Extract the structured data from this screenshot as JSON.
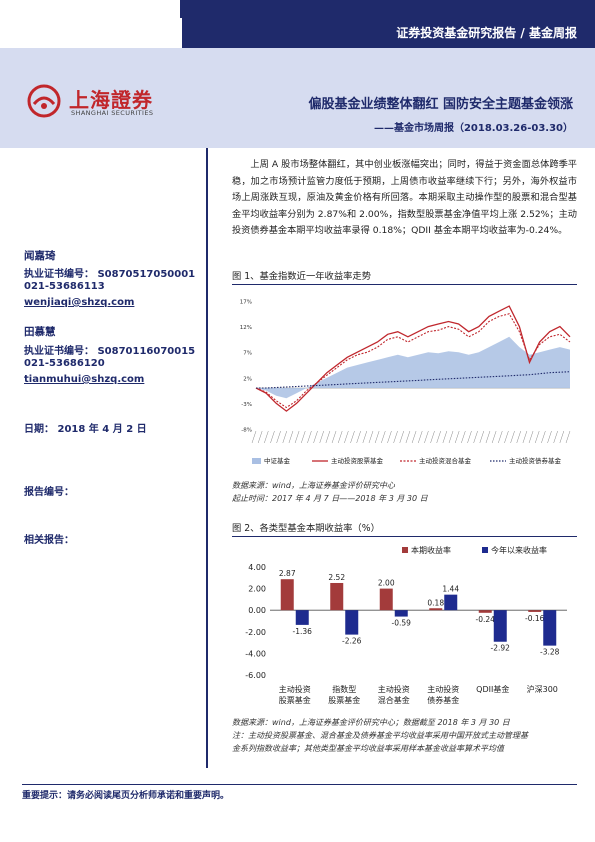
{
  "header": {
    "ribbon": "证券投资基金研究报告 / 基金周报",
    "logo_cn": "上海證券",
    "logo_en": "SHANGHAI SECURITIES",
    "title": "偏股基金业绩整体翻红 国防安全主题基金领涨",
    "subtitle": "——基金市场周报（2018.03.26-03.30）"
  },
  "sidebar": {
    "analyst1_name": "闻嘉琦",
    "analyst1_cert": "执业证书编号： S0870517050001",
    "analyst1_phone": "021-53686113",
    "analyst1_email": "wenjiaqi@shzq.com",
    "analyst2_name": "田慕慧",
    "analyst2_cert": "执业证书编号： S0870116070015",
    "analyst2_phone": "021-53686120",
    "analyst2_email": "tianmuhui@shzq.com",
    "date": "日期：  2018 年 4 月 2 日",
    "report_no": "报告编号：",
    "related": "相关报告："
  },
  "summary": {
    "p1": "上周 A 股市场整体翻红，其中创业板涨幅突出；同时，得益于资金面总体跨季平稳，加之市场预计监管力度低于预期，上周债市收益率继续下行；另外，海外权益市场上周涨跌互现，原油及黄金价格有所回落。本期采取主动操作型的股票和混合型基金平均收益率分别为 2.87%和 2.00%，指数型股票基金净值平均上涨 2.52%；主动投资债券基金本期平均收益率录得 0.18%；QDII 基金本期平均收益率为-0.24%。"
  },
  "figure1": {
    "title": "图 1、基金指数近一年收益率走势",
    "source": "数据来源：wind，上海证券基金评价研究中心",
    "period": "起止时间：2017 年 4 月 7 日——2018 年 3 月 30 日",
    "chart_data": {
      "type": "line",
      "ylim": [
        -8,
        17
      ],
      "yticks": [
        "17%",
        "12%",
        "7%",
        "2%",
        "-3%",
        "-8%"
      ],
      "ytick_values": [
        17,
        12,
        7,
        2,
        -3,
        -8
      ],
      "series": [
        {
          "name": "中证基金",
          "style": "area",
          "color": "#a9bfe3",
          "values": [
            0,
            -0.5,
            -1.5,
            -2,
            -1,
            0,
            1,
            2,
            3,
            4,
            4.5,
            5,
            5.5,
            6,
            6.5,
            6,
            6.5,
            7,
            6.8,
            7.2,
            7,
            6.5,
            7,
            8,
            9,
            10,
            8,
            6.5,
            7,
            7.5,
            8,
            7.5
          ]
        },
        {
          "name": "主动投资股票基金",
          "style": "solid",
          "color": "#c0272d",
          "values": [
            0,
            -1,
            -3,
            -4.5,
            -3,
            -1,
            1,
            3,
            4.5,
            6,
            7,
            8,
            9,
            10.5,
            11,
            10,
            11,
            12,
            12.5,
            13,
            12.5,
            11,
            12,
            14,
            15,
            16,
            12,
            5,
            9,
            11,
            12,
            10
          ]
        },
        {
          "name": "主动投资混合基金",
          "style": "dashed",
          "color": "#c0272d",
          "values": [
            0,
            -0.8,
            -2.5,
            -3.8,
            -2.5,
            -0.5,
            1,
            2.5,
            4,
            5.5,
            6.5,
            7,
            8,
            9.5,
            10,
            9,
            10,
            11,
            11.3,
            12,
            11.5,
            10,
            11,
            13,
            14,
            14.5,
            11,
            5.5,
            8.5,
            10,
            10.5,
            9
          ]
        },
        {
          "name": "主动投资债券基金",
          "style": "dotted",
          "color": "#1f2a6b",
          "values": [
            0,
            0,
            0.1,
            0.2,
            0.3,
            0.4,
            0.5,
            0.6,
            0.7,
            0.8,
            0.9,
            1,
            1.1,
            1.2,
            1.3,
            1.4,
            1.5,
            1.6,
            1.7,
            1.8,
            1.9,
            2,
            2.1,
            2.2,
            2.3,
            2.4,
            2.5,
            2.6,
            2.8,
            3,
            3.1,
            3.2
          ]
        }
      ]
    }
  },
  "figure2": {
    "title": "图 2、各类型基金本期收益率（%）",
    "source": "数据来源：wind，上海证券基金评价研究中心；数据截至 2018 年 3 月 30 日",
    "note1": "注：主动投资股票基金、混合基金及债券基金平均收益率采用中国开放式主动管理基",
    "note2": "金系列指数收益率；其他类型基金平均收益率采用样本基金收益率算术平均值",
    "chart_data": {
      "type": "bar",
      "categories": [
        [
          "主动投资",
          "股票基金"
        ],
        [
          "指数型",
          "股票基金"
        ],
        [
          "主动投资",
          "混合基金"
        ],
        [
          "主动投资",
          "债券基金"
        ],
        [
          "QDII基金"
        ],
        [
          "沪深300"
        ]
      ],
      "ylim": [
        -6,
        4
      ],
      "yticks": [
        "4.00",
        "2.00",
        "0.00",
        "-2.00",
        "-4.00",
        "-6.00"
      ],
      "ytick_values": [
        4,
        2,
        0,
        -2,
        -4,
        -6
      ],
      "series": [
        {
          "name": "本期收益率",
          "color": "#a33b3b",
          "values": [
            2.87,
            2.52,
            2.0,
            0.18,
            -0.24,
            -0.16
          ],
          "labels": [
            "2.87",
            "2.52",
            "2.00",
            "0.18",
            "-0.24",
            "-0.16"
          ]
        },
        {
          "name": "今年以来收益率",
          "color": "#1e2b8f",
          "values": [
            -1.36,
            -2.26,
            -0.59,
            1.44,
            -2.92,
            -3.28
          ],
          "labels": [
            "-1.36",
            "-2.26",
            "-0.59",
            "1.44",
            "-2.92",
            "-3.28"
          ]
        }
      ]
    }
  },
  "footer": {
    "text": "重要提示：请务必阅读尾页分析师承诺和重要声明。"
  }
}
